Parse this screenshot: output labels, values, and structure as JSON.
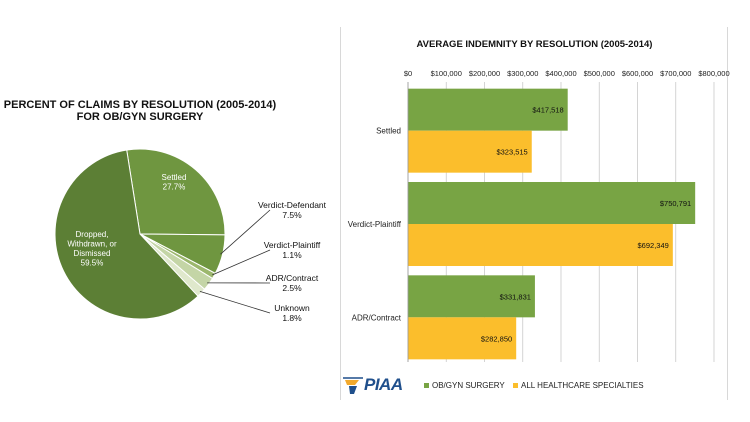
{
  "pie_chart": {
    "title_line1": "PERCENT OF CLAIMS BY RESOLUTION (2005-2014)",
    "title_line2": "FOR OB/GYN SURGERY"
  },
  "bar_chart": {
    "title": "AVERAGE INDEMNITY BY RESOLUTION (2005-2014)"
  },
  "logo": {
    "text": "PIAA"
  },
  "legend": {
    "series1": "OB/GYN SURGERY",
    "series2": "ALL HEALTHCARE SPECIALTIES"
  },
  "colors": {
    "pie_main": "#5c7f35",
    "pie_slice": "#6f9640",
    "pie_light1": "#9cb76d",
    "pie_light2": "#c4d5a6",
    "pie_light3": "#dfe8cc",
    "obgyn": "#78a444",
    "all": "#fbbe2c"
  },
  "chart_data": [
    {
      "type": "pie",
      "title": "PERCENT OF CLAIMS BY RESOLUTION (2005-2014) FOR OB/GYN SURGERY",
      "slices": [
        {
          "label": "Settled",
          "value": 27.7,
          "display": "27.7%"
        },
        {
          "label": "Verdict-Defendant",
          "value": 7.5,
          "display": "7.5%"
        },
        {
          "label": "Verdict-Plaintiff",
          "value": 1.1,
          "display": "1.1%"
        },
        {
          "label": "ADR/Contract",
          "value": 2.5,
          "display": "2.5%"
        },
        {
          "label": "Unknown",
          "value": 1.8,
          "display": "1.8%"
        },
        {
          "label": "Dropped, Withdrawn, or Dismissed",
          "value": 59.5,
          "display": "59.5%"
        }
      ]
    },
    {
      "type": "bar",
      "orientation": "horizontal",
      "title": "AVERAGE INDEMNITY BY RESOLUTION (2005-2014)",
      "categories": [
        "Settled",
        "Verdict-Plaintiff",
        "ADR/Contract"
      ],
      "series": [
        {
          "name": "OB/GYN SURGERY",
          "values": [
            417518,
            750791,
            331831
          ],
          "labels": [
            "$417,518",
            "$750,791",
            "$331,831"
          ]
        },
        {
          "name": "ALL HEALTHCARE SPECIALTIES",
          "values": [
            323515,
            692349,
            282850
          ],
          "labels": [
            "$323,515",
            "$692,349",
            "$282,850"
          ]
        }
      ],
      "xlim": [
        0,
        800000
      ],
      "xticks": [
        "$0",
        "$100,000",
        "$200,000",
        "$300,000",
        "$400,000",
        "$500,000",
        "$600,000",
        "$700,000",
        "$800,000"
      ],
      "grid": true,
      "legend": "bottom"
    }
  ]
}
